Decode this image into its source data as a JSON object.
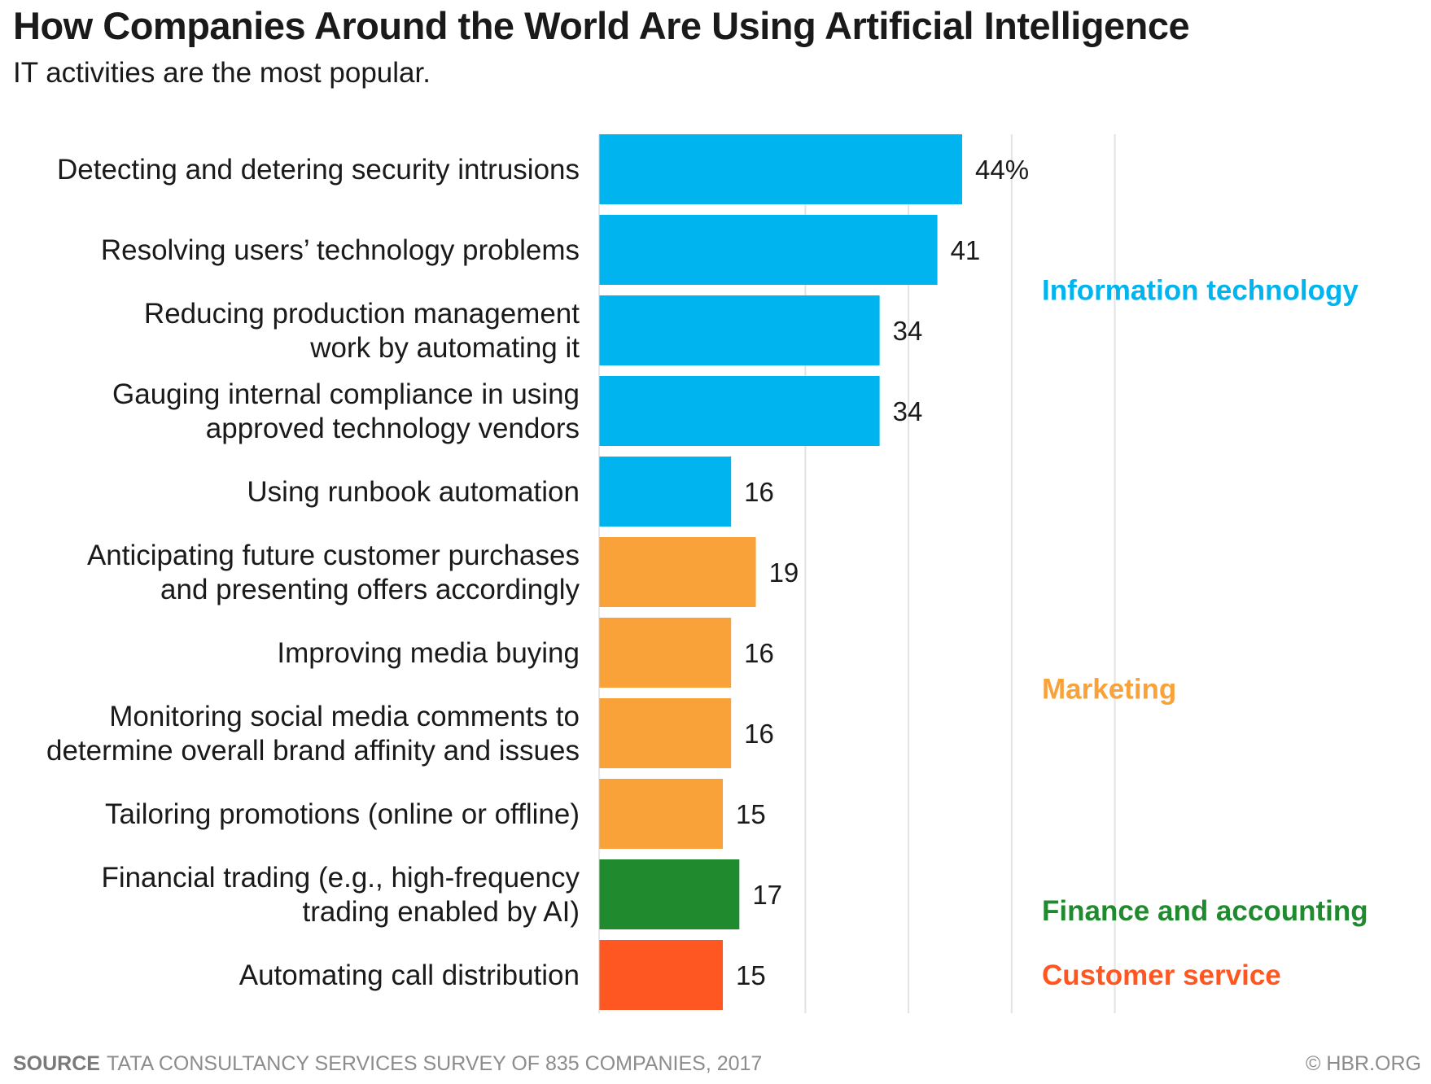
{
  "title": "How Companies Around the World Are Using Artificial Intelligence",
  "subtitle": "IT activities are the most popular.",
  "chart_data": {
    "type": "bar",
    "orientation": "horizontal",
    "categories": [
      [
        "Detecting and detering security intrusions"
      ],
      [
        "Resolving users’ technology problems"
      ],
      [
        "Reducing production management",
        "work by automating it"
      ],
      [
        "Gauging internal compliance in using",
        "approved technology vendors"
      ],
      [
        "Using runbook automation"
      ],
      [
        "Anticipating future customer purchases",
        "and presenting offers accordingly"
      ],
      [
        "Improving media buying"
      ],
      [
        "Monitoring social media comments to",
        "determine overall brand affinity and issues"
      ],
      [
        "Tailoring promotions (online or offline)"
      ],
      [
        "Financial trading (e.g., high-frequency",
        "trading enabled by AI)"
      ],
      [
        "Automating call distribution"
      ]
    ],
    "values": [
      44,
      41,
      34,
      34,
      16,
      19,
      16,
      16,
      15,
      17,
      15
    ],
    "value_labels": [
      "44%",
      "41",
      "34",
      "34",
      "16",
      "19",
      "16",
      "16",
      "15",
      "17",
      "15"
    ],
    "groups": [
      {
        "name": "Information technology",
        "color": "#00b5ef",
        "start": 0,
        "end": 4,
        "label_row": 1.5
      },
      {
        "name": "Marketing",
        "color": "#f9a23a",
        "start": 5,
        "end": 8,
        "label_row": 6.45
      },
      {
        "name": "Finance and accounting",
        "color": "#1f8a2e",
        "start": 9,
        "end": 9,
        "label_row": 9.2
      },
      {
        "name": "Customer service",
        "color": "#ff5722",
        "start": 10,
        "end": 10,
        "label_row": 10
      }
    ],
    "xlim": [
      0,
      50
    ],
    "gridlines": [
      25,
      37.5,
      50,
      62.5
    ],
    "grid": true
  },
  "source_label": "SOURCE",
  "source_text": "TATA CONSULTANCY SERVICES SURVEY OF 835 COMPANIES, 2017",
  "copyright": "© HBR.ORG"
}
